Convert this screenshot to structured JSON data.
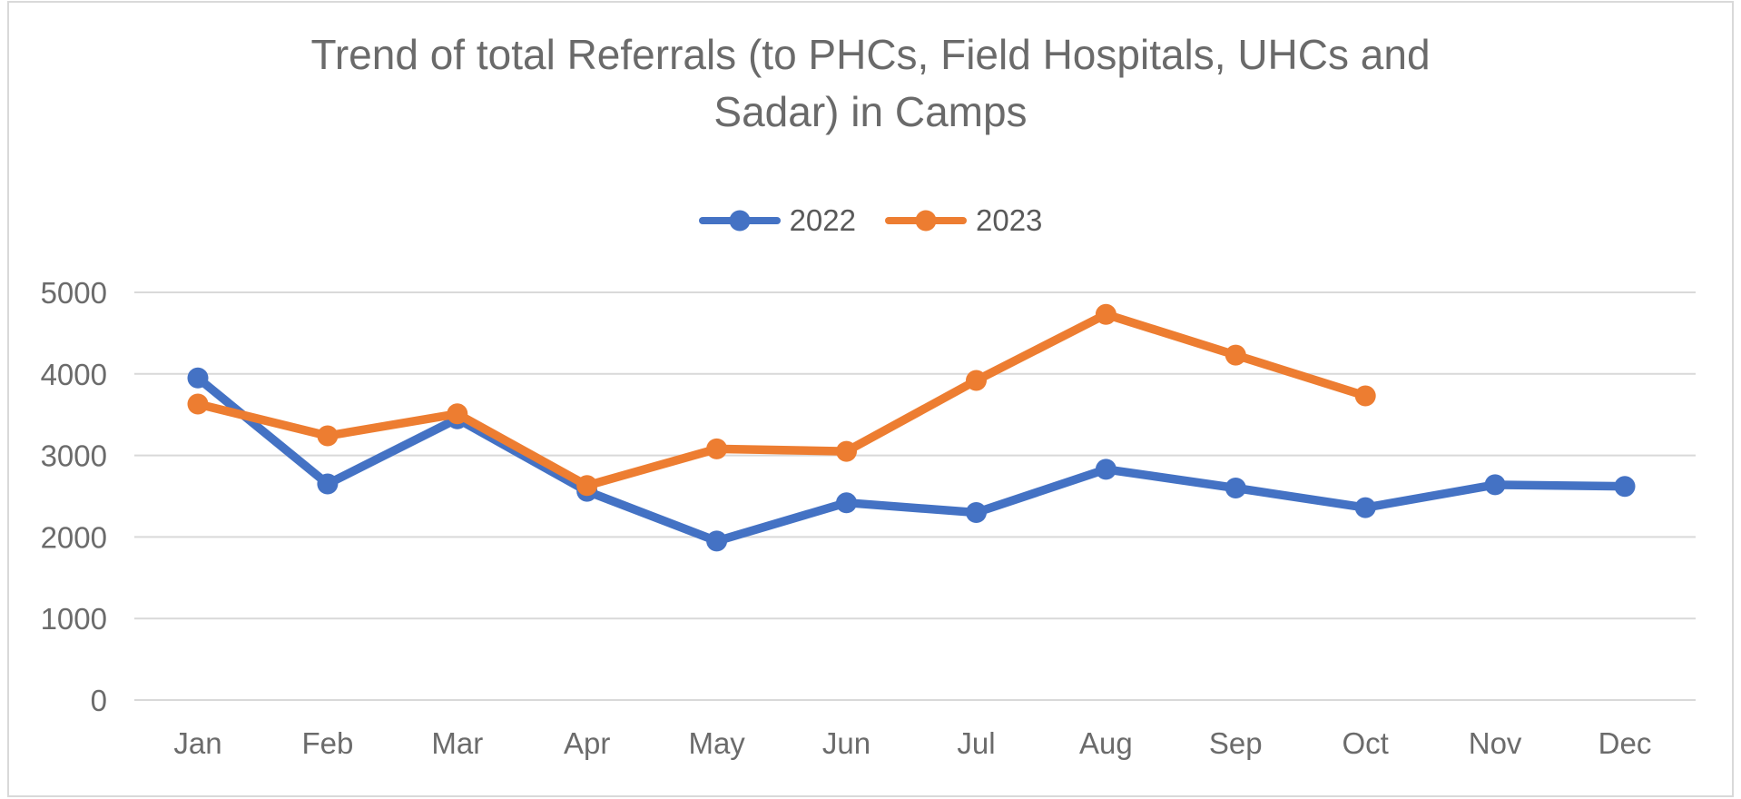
{
  "chart_data": {
    "type": "line",
    "title": "Trend of total Referrals (to PHCs, Field Hospitals, UHCs and Sadar) in Camps",
    "categories": [
      "Jan",
      "Feb",
      "Mar",
      "Apr",
      "May",
      "Jun",
      "Jul",
      "Aug",
      "Sep",
      "Oct",
      "Nov",
      "Dec"
    ],
    "series": [
      {
        "name": "2022",
        "color": "#4472C4",
        "values": [
          3950,
          2650,
          3450,
          2560,
          1950,
          2420,
          2300,
          2830,
          2600,
          2360,
          2640,
          2620
        ]
      },
      {
        "name": "2023",
        "color": "#ED7D31",
        "values": [
          3630,
          3240,
          3510,
          2630,
          3080,
          3050,
          3920,
          4730,
          4230,
          3730,
          null,
          null
        ]
      }
    ],
    "xlabel": "",
    "ylabel": "",
    "ylim": [
      0,
      5000
    ],
    "yticks": [
      0,
      1000,
      2000,
      3000,
      4000,
      5000
    ],
    "grid": true,
    "legend_position": "top-center"
  },
  "styles": {
    "background": "#FFFFFF",
    "frame_border_color": "#D9D9D9",
    "grid_color": "#D9D9D9",
    "title_color": "#6A6A6A",
    "tick_color": "#6B6B6B",
    "legend_text_color": "#595959"
  }
}
